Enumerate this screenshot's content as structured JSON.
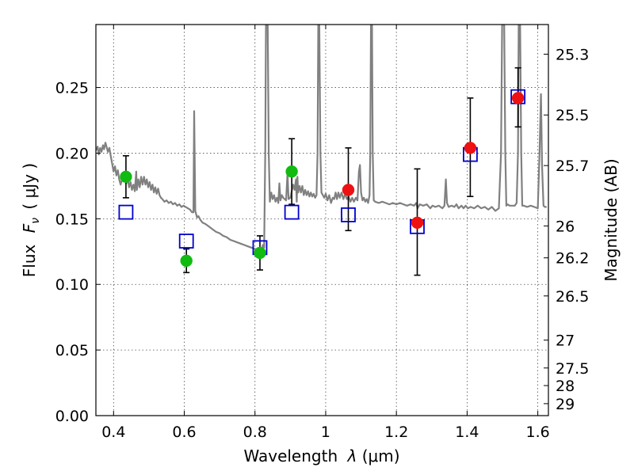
{
  "chart_data": {
    "type": "scatter",
    "xlabel_text": "Wavelength",
    "xlabel_symbol": "λ",
    "xlabel_unit": "(μm)",
    "ylabel_text": "Flux",
    "ylabel_symbol": "F",
    "ylabel_subscript": "ν",
    "ylabel_unit": "( μJy )",
    "y2label": "Magnitude (AB)",
    "xlim": [
      0.35,
      1.63
    ],
    "ylim": [
      0.0,
      0.298
    ],
    "x_ticks": [
      {
        "value": 0.4,
        "label": "0.4"
      },
      {
        "value": 0.6,
        "label": "0.6"
      },
      {
        "value": 0.8,
        "label": "0.8"
      },
      {
        "value": 1.0,
        "label": "1"
      },
      {
        "value": 1.2,
        "label": "1.2"
      },
      {
        "value": 1.4,
        "label": "1.4"
      },
      {
        "value": 1.6,
        "label": "1.6"
      }
    ],
    "y_ticks": [
      {
        "value": 0.0,
        "label": "0.00"
      },
      {
        "value": 0.05,
        "label": "0.05"
      },
      {
        "value": 0.1,
        "label": "0.10"
      },
      {
        "value": 0.15,
        "label": "0.15"
      },
      {
        "value": 0.2,
        "label": "0.20"
      },
      {
        "value": 0.25,
        "label": "0.25"
      }
    ],
    "y2_ticks": [
      {
        "mag": 25.3,
        "label": "25.3"
      },
      {
        "mag": 25.5,
        "label": "25.5"
      },
      {
        "mag": 25.7,
        "label": "25.7"
      },
      {
        "mag": 26.0,
        "label": "26"
      },
      {
        "mag": 26.2,
        "label": "26.2"
      },
      {
        "mag": 26.5,
        "label": "26.5"
      },
      {
        "mag": 27.0,
        "label": "27"
      },
      {
        "mag": 27.5,
        "label": "27.5"
      },
      {
        "mag": 28.0,
        "label": "28"
      },
      {
        "mag": 29.0,
        "label": "29"
      }
    ],
    "series": [
      {
        "name": "green-observed",
        "color": "#11bb11",
        "points": [
          {
            "x": 0.435,
            "y": 0.182,
            "err_lo": 0.016,
            "err_hi": 0.016
          },
          {
            "x": 0.606,
            "y": 0.118,
            "err_lo": 0.009,
            "err_hi": 0.009
          },
          {
            "x": 0.814,
            "y": 0.124,
            "err_lo": 0.013,
            "err_hi": 0.013
          },
          {
            "x": 0.904,
            "y": 0.186,
            "err_lo": 0.025,
            "err_hi": 0.025
          }
        ]
      },
      {
        "name": "red-observed",
        "color": "#ee1111",
        "points": [
          {
            "x": 1.064,
            "y": 0.172,
            "err_lo": 0.031,
            "err_hi": 0.032
          },
          {
            "x": 1.259,
            "y": 0.147,
            "err_lo": 0.04,
            "err_hi": 0.041
          },
          {
            "x": 1.409,
            "y": 0.204,
            "err_lo": 0.037,
            "err_hi": 0.038
          },
          {
            "x": 1.544,
            "y": 0.242,
            "err_lo": 0.022,
            "err_hi": 0.023
          }
        ]
      },
      {
        "name": "model-squares",
        "color": "#0000cc",
        "points": [
          {
            "x": 0.435,
            "y": 0.155
          },
          {
            "x": 0.606,
            "y": 0.133
          },
          {
            "x": 0.814,
            "y": 0.128
          },
          {
            "x": 0.904,
            "y": 0.155
          },
          {
            "x": 1.064,
            "y": 0.153
          },
          {
            "x": 1.259,
            "y": 0.144
          },
          {
            "x": 1.409,
            "y": 0.199
          },
          {
            "x": 1.544,
            "y": 0.243
          }
        ]
      }
    ],
    "model_spectrum": {
      "name": "template-sed",
      "color": "#808080",
      "points": [
        [
          0.35,
          0.202
        ],
        [
          0.355,
          0.205
        ],
        [
          0.358,
          0.199
        ],
        [
          0.362,
          0.204
        ],
        [
          0.366,
          0.201
        ],
        [
          0.37,
          0.206
        ],
        [
          0.373,
          0.203
        ],
        [
          0.377,
          0.208
        ],
        [
          0.38,
          0.205
        ],
        [
          0.384,
          0.201
        ],
        [
          0.388,
          0.204
        ],
        [
          0.392,
          0.198
        ],
        [
          0.396,
          0.192
        ],
        [
          0.4,
          0.186
        ],
        [
          0.404,
          0.19
        ],
        [
          0.408,
          0.183
        ],
        [
          0.412,
          0.187
        ],
        [
          0.416,
          0.18
        ],
        [
          0.42,
          0.176
        ],
        [
          0.424,
          0.18
        ],
        [
          0.428,
          0.185
        ],
        [
          0.432,
          0.18
        ],
        [
          0.436,
          0.177
        ],
        [
          0.44,
          0.181
        ],
        [
          0.444,
          0.174
        ],
        [
          0.448,
          0.178
        ],
        [
          0.452,
          0.172
        ],
        [
          0.456,
          0.176
        ],
        [
          0.46,
          0.171
        ],
        [
          0.464,
          0.186
        ],
        [
          0.466,
          0.172
        ],
        [
          0.47,
          0.18
        ],
        [
          0.474,
          0.174
        ],
        [
          0.478,
          0.182
        ],
        [
          0.482,
          0.176
        ],
        [
          0.486,
          0.182
        ],
        [
          0.49,
          0.176
        ],
        [
          0.494,
          0.18
        ],
        [
          0.498,
          0.174
        ],
        [
          0.502,
          0.178
        ],
        [
          0.506,
          0.172
        ],
        [
          0.51,
          0.176
        ],
        [
          0.514,
          0.17
        ],
        [
          0.518,
          0.174
        ],
        [
          0.522,
          0.169
        ],
        [
          0.526,
          0.173
        ],
        [
          0.53,
          0.168
        ],
        [
          0.534,
          0.166
        ],
        [
          0.538,
          0.165
        ],
        [
          0.544,
          0.163
        ],
        [
          0.55,
          0.164
        ],
        [
          0.556,
          0.162
        ],
        [
          0.562,
          0.163
        ],
        [
          0.568,
          0.161
        ],
        [
          0.574,
          0.162
        ],
        [
          0.58,
          0.16
        ],
        [
          0.586,
          0.161
        ],
        [
          0.592,
          0.159
        ],
        [
          0.598,
          0.16
        ],
        [
          0.604,
          0.159
        ],
        [
          0.61,
          0.158
        ],
        [
          0.616,
          0.157
        ],
        [
          0.622,
          0.155
        ],
        [
          0.626,
          0.155
        ],
        [
          0.628,
          0.232
        ],
        [
          0.631,
          0.156
        ],
        [
          0.636,
          0.151
        ],
        [
          0.64,
          0.152
        ],
        [
          0.646,
          0.149
        ],
        [
          0.652,
          0.147
        ],
        [
          0.66,
          0.146
        ],
        [
          0.67,
          0.144
        ],
        [
          0.68,
          0.142
        ],
        [
          0.69,
          0.14
        ],
        [
          0.7,
          0.139
        ],
        [
          0.71,
          0.137
        ],
        [
          0.72,
          0.136
        ],
        [
          0.73,
          0.134
        ],
        [
          0.74,
          0.133
        ],
        [
          0.75,
          0.132
        ],
        [
          0.76,
          0.131
        ],
        [
          0.77,
          0.13
        ],
        [
          0.78,
          0.129
        ],
        [
          0.79,
          0.128
        ],
        [
          0.8,
          0.127
        ],
        [
          0.81,
          0.126
        ],
        [
          0.818,
          0.125
        ],
        [
          0.822,
          0.13
        ],
        [
          0.826,
          0.128
        ],
        [
          0.829,
          0.2
        ],
        [
          0.831,
          0.298
        ],
        [
          0.836,
          0.298
        ],
        [
          0.839,
          0.2
        ],
        [
          0.842,
          0.163
        ],
        [
          0.846,
          0.17
        ],
        [
          0.85,
          0.165
        ],
        [
          0.854,
          0.168
        ],
        [
          0.858,
          0.163
        ],
        [
          0.862,
          0.166
        ],
        [
          0.866,
          0.162
        ],
        [
          0.869,
          0.177
        ],
        [
          0.872,
          0.164
        ],
        [
          0.876,
          0.168
        ],
        [
          0.88,
          0.166
        ],
        [
          0.884,
          0.165
        ],
        [
          0.888,
          0.164
        ],
        [
          0.892,
          0.185
        ],
        [
          0.895,
          0.165
        ],
        [
          0.9,
          0.166
        ],
        [
          0.904,
          0.171
        ],
        [
          0.908,
          0.176
        ],
        [
          0.912,
          0.172
        ],
        [
          0.916,
          0.18
        ],
        [
          0.918,
          0.163
        ],
        [
          0.92,
          0.182
        ],
        [
          0.922,
          0.17
        ],
        [
          0.926,
          0.175
        ],
        [
          0.93,
          0.17
        ],
        [
          0.934,
          0.175
        ],
        [
          0.938,
          0.168
        ],
        [
          0.942,
          0.172
        ],
        [
          0.946,
          0.168
        ],
        [
          0.95,
          0.171
        ],
        [
          0.954,
          0.167
        ],
        [
          0.958,
          0.17
        ],
        [
          0.962,
          0.167
        ],
        [
          0.966,
          0.169
        ],
        [
          0.97,
          0.166
        ],
        [
          0.974,
          0.168
        ],
        [
          0.977,
          0.2
        ],
        [
          0.979,
          0.298
        ],
        [
          0.982,
          0.298
        ],
        [
          0.985,
          0.2
        ],
        [
          0.988,
          0.17
        ],
        [
          0.992,
          0.168
        ],
        [
          0.996,
          0.166
        ],
        [
          1.0,
          0.169
        ],
        [
          1.005,
          0.164
        ],
        [
          1.01,
          0.168
        ],
        [
          1.015,
          0.162
        ],
        [
          1.02,
          0.166
        ],
        [
          1.024,
          0.165
        ],
        [
          1.028,
          0.17
        ],
        [
          1.032,
          0.165
        ],
        [
          1.036,
          0.17
        ],
        [
          1.04,
          0.166
        ],
        [
          1.045,
          0.17
        ],
        [
          1.05,
          0.165
        ],
        [
          1.055,
          0.169
        ],
        [
          1.06,
          0.165
        ],
        [
          1.065,
          0.167
        ],
        [
          1.07,
          0.163
        ],
        [
          1.075,
          0.166
        ],
        [
          1.08,
          0.163
        ],
        [
          1.085,
          0.166
        ],
        [
          1.09,
          0.164
        ],
        [
          1.094,
          0.186
        ],
        [
          1.097,
          0.191
        ],
        [
          1.1,
          0.17
        ],
        [
          1.104,
          0.164
        ],
        [
          1.108,
          0.166
        ],
        [
          1.112,
          0.163
        ],
        [
          1.116,
          0.165
        ],
        [
          1.12,
          0.162
        ],
        [
          1.124,
          0.168
        ],
        [
          1.126,
          0.2
        ],
        [
          1.128,
          0.298
        ],
        [
          1.131,
          0.298
        ],
        [
          1.133,
          0.2
        ],
        [
          1.136,
          0.164
        ],
        [
          1.14,
          0.163
        ],
        [
          1.15,
          0.162
        ],
        [
          1.16,
          0.163
        ],
        [
          1.17,
          0.162
        ],
        [
          1.18,
          0.161
        ],
        [
          1.19,
          0.162
        ],
        [
          1.2,
          0.161
        ],
        [
          1.21,
          0.162
        ],
        [
          1.22,
          0.161
        ],
        [
          1.23,
          0.16
        ],
        [
          1.24,
          0.161
        ],
        [
          1.25,
          0.16
        ],
        [
          1.256,
          0.162
        ],
        [
          1.26,
          0.158
        ],
        [
          1.266,
          0.161
        ],
        [
          1.276,
          0.16
        ],
        [
          1.286,
          0.161
        ],
        [
          1.296,
          0.158
        ],
        [
          1.302,
          0.16
        ],
        [
          1.31,
          0.159
        ],
        [
          1.32,
          0.16
        ],
        [
          1.33,
          0.158
        ],
        [
          1.336,
          0.16
        ],
        [
          1.34,
          0.18
        ],
        [
          1.343,
          0.162
        ],
        [
          1.348,
          0.159
        ],
        [
          1.356,
          0.16
        ],
        [
          1.364,
          0.159
        ],
        [
          1.37,
          0.161
        ],
        [
          1.376,
          0.158
        ],
        [
          1.384,
          0.16
        ],
        [
          1.39,
          0.158
        ],
        [
          1.396,
          0.16
        ],
        [
          1.402,
          0.158
        ],
        [
          1.41,
          0.159
        ],
        [
          1.42,
          0.158
        ],
        [
          1.43,
          0.16
        ],
        [
          1.44,
          0.158
        ],
        [
          1.45,
          0.159
        ],
        [
          1.46,
          0.157
        ],
        [
          1.47,
          0.159
        ],
        [
          1.48,
          0.156
        ],
        [
          1.49,
          0.158
        ],
        [
          1.496,
          0.2
        ],
        [
          1.499,
          0.298
        ],
        [
          1.505,
          0.298
        ],
        [
          1.508,
          0.2
        ],
        [
          1.511,
          0.16
        ],
        [
          1.515,
          0.161
        ],
        [
          1.52,
          0.16
        ],
        [
          1.525,
          0.16
        ],
        [
          1.53,
          0.16
        ],
        [
          1.535,
          0.16
        ],
        [
          1.54,
          0.162
        ],
        [
          1.544,
          0.2
        ],
        [
          1.546,
          0.298
        ],
        [
          1.55,
          0.298
        ],
        [
          1.553,
          0.2
        ],
        [
          1.556,
          0.16
        ],
        [
          1.56,
          0.16
        ],
        [
          1.57,
          0.159
        ],
        [
          1.58,
          0.16
        ],
        [
          1.59,
          0.159
        ],
        [
          1.6,
          0.158
        ],
        [
          1.605,
          0.2
        ],
        [
          1.609,
          0.245
        ],
        [
          1.612,
          0.19
        ],
        [
          1.616,
          0.16
        ],
        [
          1.62,
          0.159
        ],
        [
          1.625,
          0.159
        ]
      ]
    }
  }
}
